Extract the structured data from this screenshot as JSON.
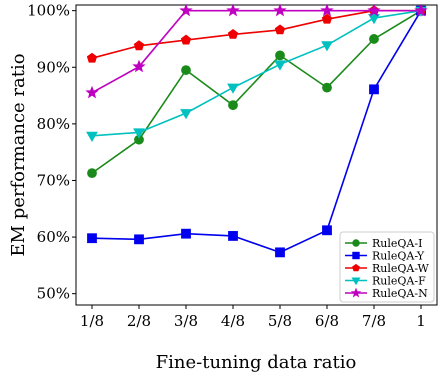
{
  "chart_data": {
    "type": "line",
    "xlabel": "Fine-tuning data ratio",
    "ylabel": "EM performance ratio",
    "categories": [
      "1/8",
      "2/8",
      "3/8",
      "4/8",
      "5/8",
      "6/8",
      "7/8",
      "1"
    ],
    "ylim": [
      48,
      101
    ],
    "yticks": [
      50,
      60,
      70,
      80,
      90,
      100
    ],
    "ytick_labels": [
      "50%",
      "60%",
      "70%",
      "80%",
      "90%",
      "100%"
    ],
    "grid": false,
    "legend_position": "bottom-right",
    "series": [
      {
        "name": "RuleQA-I",
        "color": "#1a8a1a",
        "marker": "circle",
        "values": [
          71.3,
          77.2,
          89.5,
          83.3,
          92.1,
          86.4,
          95.0,
          100.0
        ]
      },
      {
        "name": "RuleQA-Y",
        "color": "#0000ee",
        "marker": "square",
        "values": [
          59.8,
          59.6,
          60.6,
          60.2,
          57.3,
          61.2,
          86.1,
          100.0
        ]
      },
      {
        "name": "RuleQA-W",
        "color": "#ee0000",
        "marker": "pentagon",
        "values": [
          91.6,
          93.8,
          94.8,
          95.8,
          96.6,
          98.5,
          100.0,
          100.0
        ]
      },
      {
        "name": "RuleQA-F",
        "color": "#00c0c0",
        "marker": "triangle-down",
        "values": [
          77.9,
          78.5,
          81.9,
          86.4,
          90.5,
          93.9,
          98.7,
          100.0
        ]
      },
      {
        "name": "RuleQA-N",
        "color": "#c000c0",
        "marker": "star",
        "values": [
          85.5,
          90.1,
          100.0,
          100.0,
          100.0,
          100.0,
          100.0,
          100.0
        ]
      }
    ]
  }
}
